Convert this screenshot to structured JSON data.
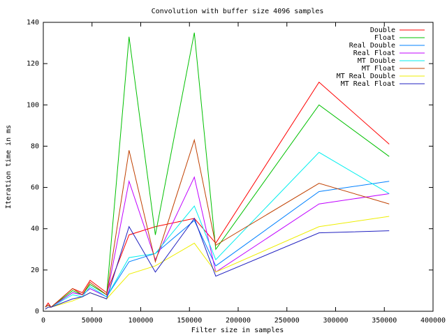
{
  "chart_data": {
    "type": "line",
    "title": "Convolution with buffer size 4096 samples",
    "x_label": "Filter size in samples",
    "y_label": "Iteration time in ms",
    "x": [
      2000,
      5000,
      8000,
      30000,
      40000,
      48000,
      65000,
      88000,
      115000,
      155000,
      177000,
      283000,
      355000
    ],
    "series": [
      {
        "name": "Double",
        "color": "#ff0000",
        "values": [
          2,
          4,
          2,
          11,
          9,
          15,
          9,
          37,
          41,
          45,
          33,
          111,
          81
        ]
      },
      {
        "name": "Float",
        "color": "#00c000",
        "values": [
          2,
          3,
          2,
          10,
          8,
          13,
          8,
          133,
          37,
          135,
          30,
          100,
          75
        ]
      },
      {
        "name": "Real Double",
        "color": "#0080ff",
        "values": [
          2,
          3,
          2,
          9,
          8,
          11,
          7,
          24,
          28,
          44,
          22,
          58,
          63
        ]
      },
      {
        "name": "Real Float",
        "color": "#c000ff",
        "values": [
          2,
          3,
          2,
          9,
          8,
          11,
          7,
          63,
          25,
          65,
          19,
          52,
          57
        ]
      },
      {
        "name": "MT Double",
        "color": "#00eeee",
        "values": [
          2,
          3,
          2,
          8,
          7,
          12,
          7,
          26,
          28,
          51,
          25,
          77,
          57
        ]
      },
      {
        "name": "MT Float",
        "color": "#c04000",
        "values": [
          2,
          3,
          2,
          11,
          8,
          14,
          8,
          78,
          24,
          83,
          32,
          62,
          52
        ]
      },
      {
        "name": "MT Real Double",
        "color": "#eeee00",
        "values": [
          1,
          2,
          2,
          5,
          7,
          9,
          6,
          18,
          22,
          33,
          19,
          41,
          46
        ]
      },
      {
        "name": "MT Real Float",
        "color": "#2020c0",
        "values": [
          1,
          2,
          2,
          6,
          7,
          9,
          6,
          41,
          19,
          45,
          17,
          38,
          39
        ]
      }
    ],
    "xlim": [
      0,
      400000
    ],
    "xticks": [
      0,
      50000,
      100000,
      150000,
      200000,
      250000,
      300000,
      350000,
      400000
    ],
    "ylim": [
      0,
      140
    ],
    "yticks": [
      0,
      20,
      40,
      60,
      80,
      100,
      120,
      140
    ],
    "legend": "top-right"
  }
}
